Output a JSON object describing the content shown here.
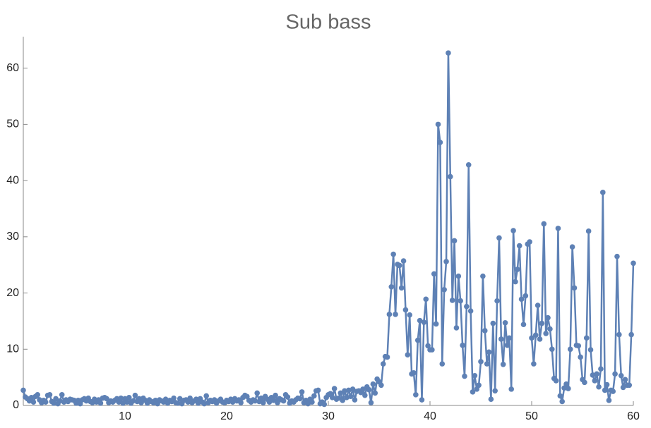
{
  "chart_data": {
    "type": "line",
    "title": "Sub bass",
    "color": "#5e81b5",
    "xlim": [
      0,
      60
    ],
    "xticks": [
      10,
      20,
      30,
      40,
      50,
      60
    ],
    "ylim": [
      0,
      65.6
    ],
    "yticks": [
      0,
      10,
      20,
      30,
      40,
      50,
      60
    ],
    "x": [
      0,
      0.2,
      0.4,
      0.6,
      0.8,
      1,
      1.2,
      1.4,
      1.6,
      1.8,
      2,
      2.2,
      2.4,
      2.6,
      2.8,
      3,
      3.2,
      3.4,
      3.6,
      3.8,
      4,
      4.2,
      4.4,
      4.6,
      4.8,
      5,
      5.2,
      5.4,
      5.6,
      5.8,
      6,
      6.2,
      6.4,
      6.6,
      6.8,
      7,
      7.2,
      7.4,
      7.6,
      7.8,
      8,
      8.2,
      8.4,
      8.6,
      8.8,
      9,
      9.2,
      9.4,
      9.6,
      9.8,
      10,
      10.2,
      10.4,
      10.6,
      10.8,
      11,
      11.2,
      11.4,
      11.6,
      11.8,
      12,
      12.2,
      12.4,
      12.6,
      12.8,
      13,
      13.2,
      13.4,
      13.6,
      13.8,
      14,
      14.2,
      14.4,
      14.6,
      14.8,
      15,
      15.2,
      15.4,
      15.6,
      15.8,
      16,
      16.2,
      16.4,
      16.6,
      16.8,
      17,
      17.2,
      17.4,
      17.6,
      17.8,
      18,
      18.2,
      18.4,
      18.6,
      18.8,
      19,
      19.2,
      19.4,
      19.6,
      19.8,
      20,
      20.2,
      20.4,
      20.6,
      20.8,
      21,
      21.2,
      21.4,
      21.6,
      21.8,
      22,
      22.2,
      22.4,
      22.6,
      22.8,
      23,
      23.2,
      23.4,
      23.6,
      23.8,
      24,
      24.2,
      24.4,
      24.6,
      24.8,
      25,
      25.2,
      25.4,
      25.6,
      25.8,
      26,
      26.2,
      26.4,
      26.6,
      26.8,
      27,
      27.2,
      27.4,
      27.6,
      27.8,
      28,
      28.2,
      28.4,
      28.6,
      28.8,
      29,
      29.2,
      29.4,
      29.6,
      29.8,
      30,
      30.2,
      30.4,
      30.6,
      30.8,
      31,
      31.2,
      31.4,
      31.6,
      31.8,
      32,
      32.2,
      32.4,
      32.6,
      32.8,
      33,
      33.2,
      33.4,
      33.6,
      33.8,
      34,
      34.2,
      34.4,
      34.6,
      34.8,
      35,
      35.2,
      35.4,
      35.6,
      35.8,
      36,
      36.2,
      36.4,
      36.6,
      36.8,
      37,
      37.2,
      37.4,
      37.6,
      37.8,
      38,
      38.2,
      38.4,
      38.6,
      38.8,
      39,
      39.2,
      39.4,
      39.6,
      39.8,
      40,
      40.2,
      40.4,
      40.6,
      40.8,
      41,
      41.2,
      41.4,
      41.6,
      41.8,
      42,
      42.2,
      42.4,
      42.6,
      42.8,
      43,
      43.2,
      43.4,
      43.6,
      43.8,
      44,
      44.2,
      44.4,
      44.6,
      44.8,
      45,
      45.2,
      45.4,
      45.6,
      45.8,
      46,
      46.2,
      46.4,
      46.6,
      46.8,
      47,
      47.2,
      47.4,
      47.6,
      47.8,
      48,
      48.2,
      48.4,
      48.6,
      48.8,
      49,
      49.2,
      49.4,
      49.6,
      49.8,
      50,
      50.2,
      50.4,
      50.6,
      50.8,
      51,
      51.2,
      51.4,
      51.6,
      51.8,
      52,
      52.2,
      52.4,
      52.6,
      52.8,
      53,
      53.2,
      53.4,
      53.6,
      53.8,
      54,
      54.2,
      54.4,
      54.6,
      54.8,
      55,
      55.2,
      55.4,
      55.6,
      55.8,
      56,
      56.2,
      56.4,
      56.6,
      56.8,
      57,
      57.2,
      57.4,
      57.6,
      57.8,
      58,
      58.2,
      58.4,
      58.6,
      58.8,
      59,
      59.2,
      59.4,
      59.6,
      59.8,
      60
    ],
    "values": [
      2.7,
      1.5,
      1.2,
      0.8,
      1.4,
      0.6,
      1.6,
      1.9,
      1.0,
      0.5,
      0.9,
      0.6,
      1.8,
      1.9,
      0.7,
      0.4,
      1.2,
      0.3,
      0.8,
      1.9,
      0.6,
      1.0,
      0.7,
      1.1,
      1.0,
      0.9,
      0.4,
      0.9,
      0.3,
      1.0,
      1.2,
      0.8,
      1.3,
      0.7,
      0.5,
      1.1,
      0.6,
      1.0,
      0.4,
      1.3,
      1.4,
      1.2,
      0.5,
      0.8,
      0.6,
      0.9,
      1.2,
      0.6,
      1.3,
      0.4,
      1.2,
      0.6,
      1.4,
      0.4,
      0.8,
      1.8,
      0.7,
      1.2,
      0.5,
      1.3,
      0.9,
      0.4,
      1.0,
      0.7,
      0.5,
      0.9,
      0.3,
      1.0,
      0.8,
      0.6,
      1.1,
      0.4,
      0.9,
      0.7,
      1.3,
      0.5,
      0.4,
      1.2,
      0.3,
      0.9,
      1.0,
      0.6,
      1.3,
      0.5,
      0.8,
      1.1,
      0.4,
      1.2,
      0.6,
      0.3,
      1.7,
      0.5,
      0.9,
      0.7,
      1.0,
      0.4,
      0.8,
      1.1,
      0.6,
      0.5,
      0.9,
      0.7,
      1.1,
      0.6,
      1.2,
      0.8,
      1.0,
      0.5,
      1.4,
      1.8,
      1.6,
      0.9,
      0.6,
      1.0,
      0.8,
      2.2,
      0.7,
      1.3,
      0.5,
      1.6,
      1.1,
      0.6,
      1.4,
      0.9,
      1.8,
      0.5,
      1.2,
      1.0,
      0.8,
      1.9,
      1.5,
      0.4,
      0.8,
      0.6,
      1.0,
      1.3,
      1.2,
      2.4,
      0.5,
      0.9,
      0.3,
      1.1,
      0.6,
      1.7,
      2.6,
      2.7,
      0.3,
      0.6,
      0.2,
      1.4,
      1.9,
      2.1,
      1.4,
      3.0,
      1.1,
      1.3,
      2.2,
      0.9,
      2.6,
      1.4,
      2.7,
      1.6,
      2.9,
      1.0,
      2.5,
      2.6,
      2.3,
      2.9,
      1.8,
      3.3,
      2.8,
      0.5,
      3.8,
      2.2,
      4.7,
      4.2,
      3.6,
      7.4,
      8.7,
      8.6,
      16.2,
      21.1,
      26.9,
      16.2,
      25.1,
      24.9,
      20.9,
      25.7,
      17.0,
      9.0,
      16.1,
      5.6,
      5.8,
      1.9,
      11.6,
      15.1,
      1.0,
      14.8,
      18.9,
      10.6,
      9.9,
      9.9,
      23.4,
      14.5,
      50.0,
      46.8,
      7.4,
      20.6,
      25.6,
      62.7,
      40.7,
      18.7,
      29.3,
      13.8,
      23.0,
      18.6,
      10.7,
      5.2,
      17.6,
      42.8,
      16.8,
      2.4,
      5.3,
      2.9,
      3.6,
      7.8,
      23.0,
      13.3,
      7.4,
      9.5,
      1.1,
      14.6,
      2.6,
      18.6,
      29.8,
      11.8,
      7.3,
      14.7,
      10.7,
      12.0,
      2.9,
      31.1,
      22.0,
      24.2,
      28.4,
      18.9,
      14.4,
      19.5,
      28.7,
      29.1,
      12.0,
      7.4,
      12.5,
      17.8,
      11.8,
      14.6,
      32.3,
      12.8,
      15.6,
      13.6,
      10.0,
      4.8,
      4.4,
      31.5,
      1.7,
      0.7,
      3.1,
      3.8,
      3.0,
      10.0,
      28.2,
      20.9,
      10.7,
      10.6,
      8.6,
      4.6,
      4.1,
      12.0,
      31.0,
      9.9,
      5.4,
      4.4,
      5.6,
      3.3,
      6.5,
      37.9,
      2.7,
      3.7,
      0.9,
      2.7,
      2.5,
      5.6,
      26.5,
      12.6,
      5.3,
      3.2,
      4.6,
      3.6,
      3.6,
      12.6,
      25.3
    ]
  }
}
